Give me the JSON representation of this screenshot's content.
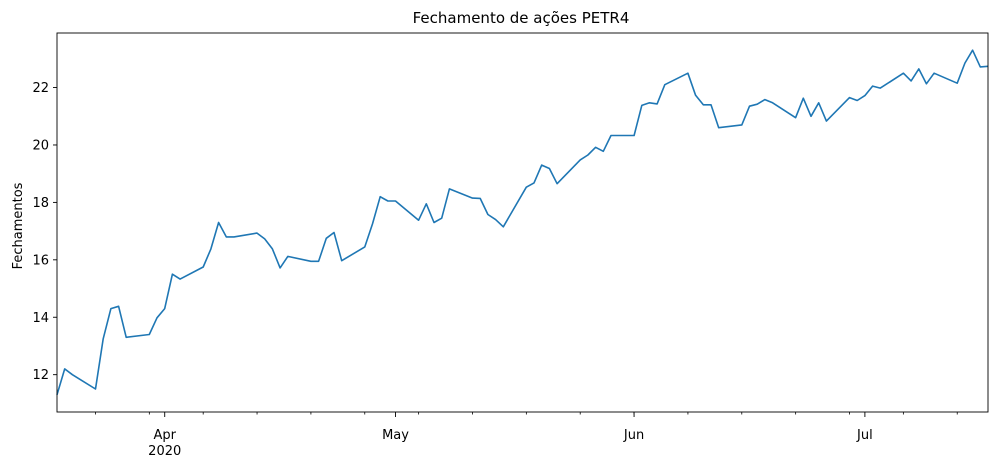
{
  "chart_data": {
    "type": "line",
    "title": "Fechamento de ações PETR4",
    "xlabel": "",
    "ylabel": "Fechamentos",
    "y_ticks": [
      12,
      14,
      16,
      18,
      20,
      22
    ],
    "ylim": [
      10.7,
      23.9
    ],
    "x_major_ticks": [
      {
        "date": "2020-04-01",
        "label": "Apr",
        "sublabel": "2020"
      },
      {
        "date": "2020-05-01",
        "label": "May",
        "sublabel": ""
      },
      {
        "date": "2020-06-01",
        "label": "Jun",
        "sublabel": ""
      },
      {
        "date": "2020-07-01",
        "label": "Jul",
        "sublabel": ""
      }
    ],
    "grid": false,
    "color": "#1f77b4",
    "series": [
      {
        "x": [
          "2020-03-18",
          "2020-03-19",
          "2020-03-20",
          "2020-03-23",
          "2020-03-24",
          "2020-03-25",
          "2020-03-26",
          "2020-03-27",
          "2020-03-30",
          "2020-03-31",
          "2020-04-01",
          "2020-04-02",
          "2020-04-03",
          "2020-04-06",
          "2020-04-07",
          "2020-04-08",
          "2020-04-09",
          "2020-04-10",
          "2020-04-13",
          "2020-04-14",
          "2020-04-15",
          "2020-04-16",
          "2020-04-17",
          "2020-04-20",
          "2020-04-21",
          "2020-04-22",
          "2020-04-23",
          "2020-04-24",
          "2020-04-27",
          "2020-04-28",
          "2020-04-29",
          "2020-04-30",
          "2020-05-01",
          "2020-05-04",
          "2020-05-05",
          "2020-05-06",
          "2020-05-07",
          "2020-05-08",
          "2020-05-11",
          "2020-05-12",
          "2020-05-13",
          "2020-05-14",
          "2020-05-15",
          "2020-05-18",
          "2020-05-19",
          "2020-05-20",
          "2020-05-21",
          "2020-05-22",
          "2020-05-25",
          "2020-05-26",
          "2020-05-27",
          "2020-05-28",
          "2020-05-29",
          "2020-06-01",
          "2020-06-02",
          "2020-06-03",
          "2020-06-04",
          "2020-06-05",
          "2020-06-08",
          "2020-06-09",
          "2020-06-10",
          "2020-06-11",
          "2020-06-12",
          "2020-06-15",
          "2020-06-16",
          "2020-06-17",
          "2020-06-18",
          "2020-06-19",
          "2020-06-22",
          "2020-06-23",
          "2020-06-24",
          "2020-06-25",
          "2020-06-26",
          "2020-06-29",
          "2020-06-30",
          "2020-07-01",
          "2020-07-02",
          "2020-07-03",
          "2020-07-06",
          "2020-07-07",
          "2020-07-08",
          "2020-07-09",
          "2020-07-10",
          "2020-07-13",
          "2020-07-14",
          "2020-07-15",
          "2020-07-16",
          "2020-07-17"
        ],
        "y": [
          11.3,
          12.2,
          12.0,
          11.5,
          13.25,
          14.3,
          14.38,
          13.3,
          13.4,
          13.98,
          14.3,
          15.5,
          15.33,
          15.75,
          16.38,
          17.3,
          16.8,
          16.8,
          16.93,
          16.73,
          16.38,
          15.72,
          16.12,
          15.95,
          15.95,
          16.75,
          16.95,
          15.97,
          16.45,
          17.25,
          18.2,
          18.05,
          18.05,
          17.38,
          17.95,
          17.3,
          17.45,
          18.47,
          18.15,
          18.14,
          17.58,
          17.4,
          17.15,
          18.53,
          18.68,
          19.3,
          19.18,
          18.65,
          19.48,
          19.65,
          19.92,
          19.78,
          20.33,
          20.33,
          21.38,
          21.47,
          21.43,
          22.1,
          22.5,
          21.73,
          21.4,
          21.4,
          20.6,
          20.7,
          21.35,
          21.42,
          21.58,
          21.47,
          20.95,
          21.63,
          21.0,
          21.47,
          20.83,
          21.65,
          21.55,
          21.72,
          22.05,
          21.98,
          22.5,
          22.23,
          22.65,
          22.13,
          22.5,
          22.15,
          22.85,
          23.3,
          22.72,
          22.74
        ]
      }
    ]
  }
}
